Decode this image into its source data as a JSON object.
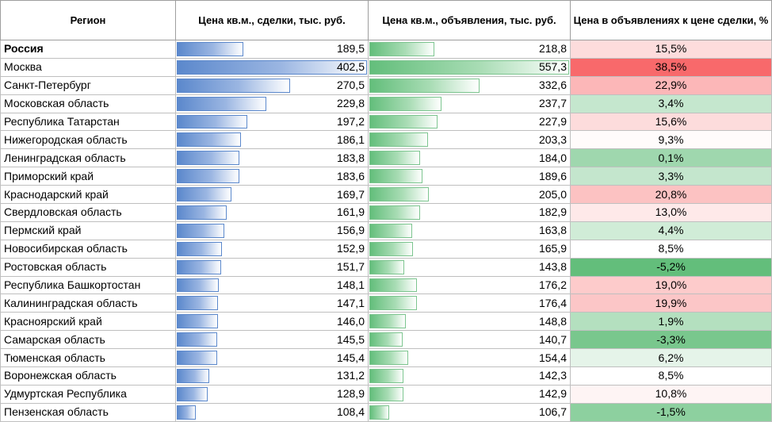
{
  "headers": {
    "region": "Регион",
    "deal_price": "Цена кв.м., сделки, тыс. руб.",
    "ad_price": "Цена кв.м., объявления, тыс. руб.",
    "premium": "Цена в объявлениях к цене сделки, %"
  },
  "rows": [
    {
      "region": "Россия",
      "deal": "189,5",
      "ad": "218,8",
      "premium": "15,5%",
      "deal_value": 189.5,
      "ad_value": 218.8,
      "premium_value": 15.5
    },
    {
      "region": "Москва",
      "deal": "402,5",
      "ad": "557,3",
      "premium": "38,5%",
      "deal_value": 402.5,
      "ad_value": 557.3,
      "premium_value": 38.5
    },
    {
      "region": "Санкт-Петербург",
      "deal": "270,5",
      "ad": "332,6",
      "premium": "22,9%",
      "deal_value": 270.5,
      "ad_value": 332.6,
      "premium_value": 22.9
    },
    {
      "region": "Московская область",
      "deal": "229,8",
      "ad": "237,7",
      "premium": "3,4%",
      "deal_value": 229.8,
      "ad_value": 237.7,
      "premium_value": 3.4
    },
    {
      "region": "Республика Татарстан",
      "deal": "197,2",
      "ad": "227,9",
      "premium": "15,6%",
      "deal_value": 197.2,
      "ad_value": 227.9,
      "premium_value": 15.6
    },
    {
      "region": "Нижегородская область",
      "deal": "186,1",
      "ad": "203,3",
      "premium": "9,3%",
      "deal_value": 186.1,
      "ad_value": 203.3,
      "premium_value": 9.3
    },
    {
      "region": "Ленинградская область",
      "deal": "183,8",
      "ad": "184,0",
      "premium": "0,1%",
      "deal_value": 183.8,
      "ad_value": 184.0,
      "premium_value": 0.1
    },
    {
      "region": "Приморский край",
      "deal": "183,6",
      "ad": "189,6",
      "premium": "3,3%",
      "deal_value": 183.6,
      "ad_value": 189.6,
      "premium_value": 3.3
    },
    {
      "region": "Краснодарский край",
      "deal": "169,7",
      "ad": "205,0",
      "premium": "20,8%",
      "deal_value": 169.7,
      "ad_value": 205.0,
      "premium_value": 20.8
    },
    {
      "region": "Свердловская область",
      "deal": "161,9",
      "ad": "182,9",
      "premium": "13,0%",
      "deal_value": 161.9,
      "ad_value": 182.9,
      "premium_value": 13.0
    },
    {
      "region": "Пермский край",
      "deal": "156,9",
      "ad": "163,8",
      "premium": "4,4%",
      "deal_value": 156.9,
      "ad_value": 163.8,
      "premium_value": 4.4
    },
    {
      "region": "Новосибирская область",
      "deal": "152,9",
      "ad": "165,9",
      "premium": "8,5%",
      "deal_value": 152.9,
      "ad_value": 165.9,
      "premium_value": 8.5
    },
    {
      "region": "Ростовская область",
      "deal": "151,7",
      "ad": "143,8",
      "premium": "-5,2%",
      "deal_value": 151.7,
      "ad_value": 143.8,
      "premium_value": -5.2
    },
    {
      "region": "Республика Башкортостан",
      "deal": "148,1",
      "ad": "176,2",
      "premium": "19,0%",
      "deal_value": 148.1,
      "ad_value": 176.2,
      "premium_value": 19.0
    },
    {
      "region": "Калининградская область",
      "deal": "147,1",
      "ad": "176,4",
      "premium": "19,9%",
      "deal_value": 147.1,
      "ad_value": 176.4,
      "premium_value": 19.9
    },
    {
      "region": "Красноярский край",
      "deal": "146,0",
      "ad": "148,8",
      "premium": "1,9%",
      "deal_value": 146.0,
      "ad_value": 148.8,
      "premium_value": 1.9
    },
    {
      "region": "Самарская область",
      "deal": "145,5",
      "ad": "140,7",
      "premium": "-3,3%",
      "deal_value": 145.5,
      "ad_value": 140.7,
      "premium_value": -3.3
    },
    {
      "region": "Тюменская область",
      "deal": "145,4",
      "ad": "154,4",
      "premium": "6,2%",
      "deal_value": 145.4,
      "ad_value": 154.4,
      "premium_value": 6.2
    },
    {
      "region": "Воронежская область",
      "deal": "131,2",
      "ad": "142,3",
      "premium": "8,5%",
      "deal_value": 131.2,
      "ad_value": 142.3,
      "premium_value": 8.5
    },
    {
      "region": "Удмуртская Республика",
      "deal": "128,9",
      "ad": "142,9",
      "premium": "10,8%",
      "deal_value": 128.9,
      "ad_value": 142.9,
      "premium_value": 10.8
    },
    {
      "region": "Пензенская область",
      "deal": "108,4",
      "ad": "106,7",
      "premium": "-1,5%",
      "deal_value": 108.4,
      "ad_value": 106.7,
      "premium_value": -1.5
    }
  ],
  "colors": {
    "deal_bar": "#5b88cc",
    "ad_bar": "#63be7b",
    "premium_high": "#f8696b",
    "premium_mid": "#ffffff",
    "premium_low": "#63be7b"
  }
}
